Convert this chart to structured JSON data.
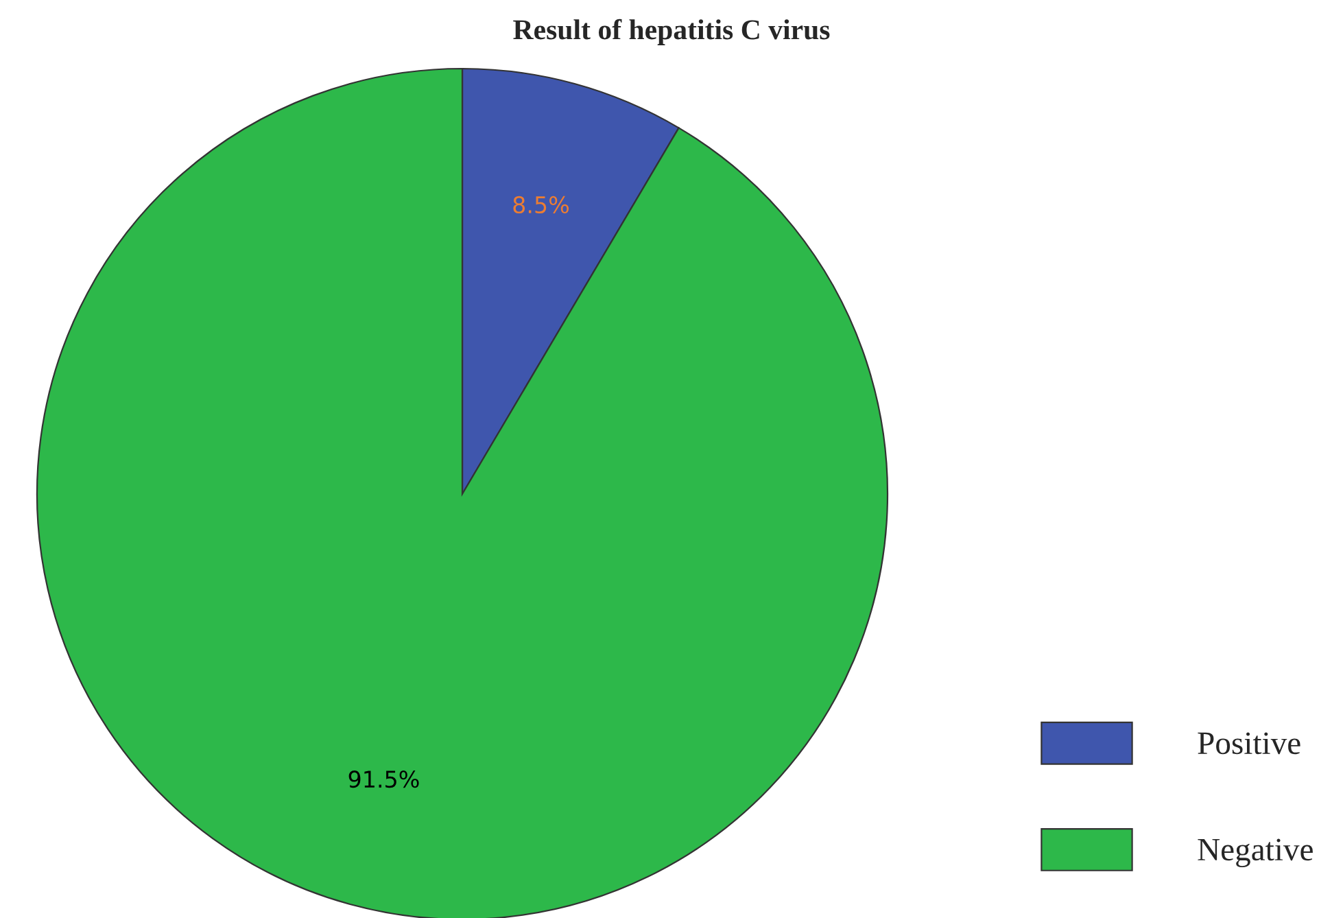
{
  "chart_data": {
    "type": "pie",
    "title": "Result of hepatitis C virus",
    "categories": [
      "Positive",
      "Negative"
    ],
    "values": [
      8.5,
      91.5
    ],
    "colors": [
      "#3f56ad",
      "#2db84a"
    ],
    "value_labels": [
      "8.5%",
      "91.5%"
    ],
    "legend": "bottom right"
  }
}
